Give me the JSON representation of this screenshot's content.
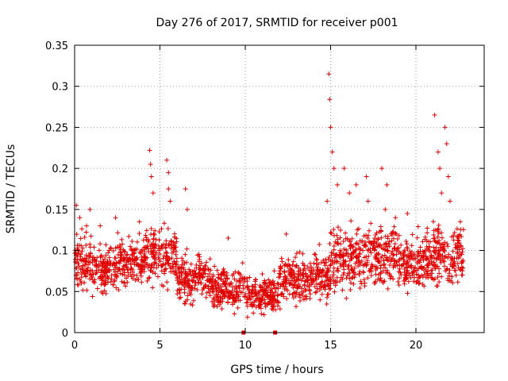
{
  "chart_data": {
    "type": "scatter",
    "title": "Day 276 of 2017, SRMTID for receiver p001",
    "xlabel": "GPS time / hours",
    "ylabel": "SRMTID / TECUs",
    "xlim": [
      0,
      24
    ],
    "ylim": [
      0,
      0.35
    ],
    "xticks": [
      0,
      5,
      10,
      15,
      20
    ],
    "xtick_labels": [
      "0",
      "5",
      "10",
      "15",
      "20"
    ],
    "yticks": [
      0,
      0.05,
      0.1,
      0.15,
      0.2,
      0.25,
      0.3,
      0.35
    ],
    "ytick_labels": [
      "0",
      "0.05",
      "0.1",
      "0.15",
      "0.2",
      "0.25",
      "0.3",
      "0.35"
    ],
    "grid": true,
    "marker": "plus",
    "color": "#e00000",
    "segments": [
      {
        "x_start": 0.0,
        "x_end": 1.0,
        "y_base": 0.085,
        "y_spread": 0.03
      },
      {
        "x_start": 1.0,
        "x_end": 2.5,
        "y_base": 0.075,
        "y_spread": 0.025
      },
      {
        "x_start": 2.5,
        "x_end": 4.0,
        "y_base": 0.085,
        "y_spread": 0.025
      },
      {
        "x_start": 4.0,
        "x_end": 6.0,
        "y_base": 0.095,
        "y_spread": 0.03
      },
      {
        "x_start": 6.0,
        "x_end": 8.0,
        "y_base": 0.065,
        "y_spread": 0.025
      },
      {
        "x_start": 8.0,
        "x_end": 10.0,
        "y_base": 0.055,
        "y_spread": 0.022
      },
      {
        "x_start": 10.0,
        "x_end": 12.0,
        "y_base": 0.045,
        "y_spread": 0.02
      },
      {
        "x_start": 12.0,
        "x_end": 14.0,
        "y_base": 0.065,
        "y_spread": 0.025
      },
      {
        "x_start": 14.0,
        "x_end": 15.0,
        "y_base": 0.07,
        "y_spread": 0.03
      },
      {
        "x_start": 15.0,
        "x_end": 17.0,
        "y_base": 0.09,
        "y_spread": 0.035
      },
      {
        "x_start": 17.0,
        "x_end": 19.0,
        "y_base": 0.095,
        "y_spread": 0.035
      },
      {
        "x_start": 19.0,
        "x_end": 21.0,
        "y_base": 0.085,
        "y_spread": 0.03
      },
      {
        "x_start": 21.0,
        "x_end": 22.8,
        "y_base": 0.095,
        "y_spread": 0.035
      }
    ],
    "spikes": [
      {
        "x": 0.1,
        "y": 0.155
      },
      {
        "x": 0.3,
        "y": 0.14
      },
      {
        "x": 0.7,
        "y": 0.13
      },
      {
        "x": 0.9,
        "y": 0.15
      },
      {
        "x": 1.5,
        "y": 0.13
      },
      {
        "x": 2.4,
        "y": 0.14
      },
      {
        "x": 3.8,
        "y": 0.135
      },
      {
        "x": 4.4,
        "y": 0.222
      },
      {
        "x": 4.45,
        "y": 0.205
      },
      {
        "x": 4.5,
        "y": 0.19
      },
      {
        "x": 4.6,
        "y": 0.17
      },
      {
        "x": 5.4,
        "y": 0.21
      },
      {
        "x": 5.5,
        "y": 0.195
      },
      {
        "x": 5.5,
        "y": 0.175
      },
      {
        "x": 5.6,
        "y": 0.16
      },
      {
        "x": 6.5,
        "y": 0.175
      },
      {
        "x": 6.6,
        "y": 0.15
      },
      {
        "x": 9.0,
        "y": 0.115
      },
      {
        "x": 12.4,
        "y": 0.12
      },
      {
        "x": 14.9,
        "y": 0.315
      },
      {
        "x": 14.95,
        "y": 0.284
      },
      {
        "x": 15.0,
        "y": 0.25
      },
      {
        "x": 15.1,
        "y": 0.22
      },
      {
        "x": 15.2,
        "y": 0.2
      },
      {
        "x": 14.8,
        "y": 0.16
      },
      {
        "x": 15.4,
        "y": 0.18
      },
      {
        "x": 15.8,
        "y": 0.2
      },
      {
        "x": 16.1,
        "y": 0.17
      },
      {
        "x": 16.5,
        "y": 0.18
      },
      {
        "x": 17.1,
        "y": 0.19
      },
      {
        "x": 17.2,
        "y": 0.16
      },
      {
        "x": 18.0,
        "y": 0.2
      },
      {
        "x": 18.3,
        "y": 0.18
      },
      {
        "x": 18.2,
        "y": 0.15
      },
      {
        "x": 18.8,
        "y": 0.14
      },
      {
        "x": 19.5,
        "y": 0.145
      },
      {
        "x": 21.1,
        "y": 0.265
      },
      {
        "x": 21.3,
        "y": 0.22
      },
      {
        "x": 21.4,
        "y": 0.2
      },
      {
        "x": 21.5,
        "y": 0.17
      },
      {
        "x": 21.7,
        "y": 0.25
      },
      {
        "x": 21.8,
        "y": 0.23
      },
      {
        "x": 21.9,
        "y": 0.19
      },
      {
        "x": 22.0,
        "y": 0.16
      },
      {
        "x": 22.6,
        "y": 0.135
      }
    ],
    "zero_points": [
      {
        "x": 9.9,
        "y": 0.0
      },
      {
        "x": 11.75,
        "y": 0.0
      }
    ]
  }
}
